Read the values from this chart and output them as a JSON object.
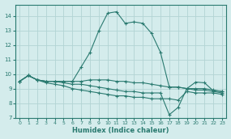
{
  "xlabel": "Humidex (Indice chaleur)",
  "xlim": [
    -0.5,
    23.5
  ],
  "ylim": [
    7,
    14.8
  ],
  "yticks": [
    7,
    8,
    9,
    10,
    11,
    12,
    13,
    14
  ],
  "xticks": [
    0,
    1,
    2,
    3,
    4,
    5,
    6,
    7,
    8,
    9,
    10,
    11,
    12,
    13,
    14,
    15,
    16,
    17,
    18,
    19,
    20,
    21,
    22,
    23
  ],
  "bg_color": "#d4ecec",
  "grid_color": "#b2d4d4",
  "line_color": "#2a7a70",
  "lines": [
    {
      "x": [
        0,
        1,
        2,
        3,
        4,
        5,
        6,
        7,
        8,
        9,
        10,
        11,
        12,
        13,
        14,
        15,
        16,
        17,
        18,
        19,
        20,
        21,
        22,
        23
      ],
      "y": [
        9.5,
        9.9,
        9.6,
        9.5,
        9.5,
        9.5,
        9.5,
        10.5,
        11.5,
        13.0,
        14.2,
        14.3,
        13.5,
        13.6,
        13.5,
        12.8,
        11.5,
        9.1,
        9.1,
        9.0,
        9.45,
        9.4,
        8.85,
        8.8
      ]
    },
    {
      "x": [
        0,
        1,
        2,
        3,
        4,
        5,
        6,
        7,
        8,
        9,
        10,
        11,
        12,
        13,
        14,
        15,
        16,
        17,
        18,
        19,
        20,
        21,
        22,
        23
      ],
      "y": [
        9.5,
        9.9,
        9.6,
        9.5,
        9.5,
        9.5,
        9.5,
        9.5,
        9.6,
        9.6,
        9.6,
        9.5,
        9.5,
        9.4,
        9.4,
        9.3,
        9.2,
        9.1,
        9.1,
        9.0,
        9.0,
        9.0,
        8.9,
        8.8
      ]
    },
    {
      "x": [
        0,
        1,
        2,
        3,
        4,
        5,
        6,
        7,
        8,
        9,
        10,
        11,
        12,
        13,
        14,
        15,
        16,
        17,
        18,
        19,
        20,
        21,
        22,
        23
      ],
      "y": [
        9.5,
        9.9,
        9.6,
        9.5,
        9.5,
        9.4,
        9.3,
        9.3,
        9.2,
        9.1,
        9.0,
        8.9,
        8.8,
        8.8,
        8.7,
        8.7,
        8.7,
        7.2,
        7.7,
        9.0,
        8.9,
        8.9,
        8.8,
        8.7
      ]
    },
    {
      "x": [
        0,
        1,
        2,
        3,
        4,
        5,
        6,
        7,
        8,
        9,
        10,
        11,
        12,
        13,
        14,
        15,
        16,
        17,
        18,
        19,
        20,
        21,
        22,
        23
      ],
      "y": [
        9.5,
        9.9,
        9.6,
        9.4,
        9.3,
        9.2,
        9.0,
        8.9,
        8.8,
        8.7,
        8.6,
        8.5,
        8.5,
        8.4,
        8.4,
        8.3,
        8.3,
        8.3,
        8.2,
        8.8,
        8.7,
        8.7,
        8.7,
        8.6
      ]
    }
  ]
}
